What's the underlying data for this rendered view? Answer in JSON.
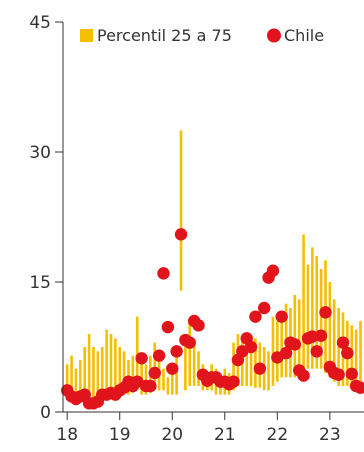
{
  "chart_data": {
    "type": "bar-range-scatter",
    "title": "",
    "xlabel": "",
    "ylabel": "",
    "ylim": [
      0,
      45
    ],
    "xlim": [
      18,
      23.65
    ],
    "y_ticks": [
      0,
      15,
      30,
      45
    ],
    "x_ticks": [
      18,
      19,
      20,
      21,
      22,
      23
    ],
    "x_tick_labels": [
      "18",
      "19",
      "20",
      "21",
      "22",
      "23"
    ],
    "grid": false,
    "legend": {
      "placement": "top",
      "entries": [
        "Percentil 25 a 75",
        "Chile"
      ]
    },
    "colors": {
      "band": "#F6BE00",
      "point": "#E1141B",
      "axis": "#333333"
    },
    "series": [
      {
        "name": "Percentil 25 a 75",
        "type": "range-bar",
        "x": [
          18.0,
          18.083,
          18.167,
          18.25,
          18.333,
          18.417,
          18.5,
          18.583,
          18.667,
          18.75,
          18.833,
          18.917,
          19.0,
          19.083,
          19.167,
          19.25,
          19.333,
          19.417,
          19.5,
          19.583,
          19.667,
          19.75,
          19.833,
          19.917,
          20.0,
          20.083,
          20.167,
          20.25,
          20.333,
          20.417,
          20.5,
          20.583,
          20.667,
          20.75,
          20.833,
          20.917,
          21.0,
          21.083,
          21.167,
          21.25,
          21.333,
          21.417,
          21.5,
          21.583,
          21.667,
          21.75,
          21.833,
          21.917,
          22.0,
          22.083,
          22.167,
          22.25,
          22.333,
          22.417,
          22.5,
          22.583,
          22.667,
          22.75,
          22.833,
          22.917,
          23.0,
          23.083,
          23.167,
          23.25,
          23.333,
          23.417,
          23.5,
          23.583
        ],
        "low": [
          2.0,
          2.5,
          2.2,
          2.0,
          1.8,
          1.5,
          1.5,
          1.8,
          2.0,
          2.2,
          2.5,
          2.5,
          2.2,
          2.0,
          2.0,
          2.2,
          2.5,
          2.0,
          2.0,
          2.2,
          2.5,
          2.5,
          2.5,
          2.0,
          2.0,
          2.0,
          14.0,
          2.5,
          3.0,
          3.0,
          3.0,
          2.5,
          2.5,
          2.5,
          2.0,
          2.0,
          2.0,
          2.0,
          2.5,
          3.0,
          3.0,
          3.0,
          3.0,
          2.8,
          2.8,
          2.5,
          2.5,
          3.0,
          3.5,
          4.0,
          4.0,
          4.0,
          4.0,
          4.0,
          4.5,
          5.0,
          5.0,
          5.0,
          5.0,
          4.5,
          4.0,
          3.5,
          3.0,
          3.0,
          3.0,
          3.0,
          3.0,
          3.0
        ],
        "high": [
          5.5,
          6.5,
          5.0,
          6.0,
          7.5,
          9.0,
          7.5,
          7.0,
          7.5,
          9.5,
          9.0,
          8.5,
          7.5,
          7.0,
          6.0,
          6.5,
          11.0,
          6.0,
          5.5,
          6.5,
          8.0,
          7.0,
          5.0,
          4.0,
          5.5,
          6.5,
          32.5,
          8.0,
          10.5,
          8.0,
          7.0,
          5.5,
          4.5,
          5.5,
          5.0,
          4.5,
          5.0,
          4.5,
          8.0,
          9.0,
          8.5,
          8.0,
          7.0,
          8.5,
          8.0,
          7.5,
          7.0,
          11.0,
          10.5,
          11.0,
          12.5,
          12.0,
          13.5,
          13.0,
          20.5,
          17.0,
          19.0,
          18.0,
          16.5,
          17.5,
          15.0,
          13.0,
          12.0,
          11.5,
          10.5,
          10.0,
          9.5,
          10.5
        ]
      },
      {
        "name": "Chile",
        "type": "scatter",
        "x": [
          18.0,
          18.083,
          18.167,
          18.25,
          18.333,
          18.417,
          18.5,
          18.583,
          18.667,
          18.75,
          18.833,
          18.917,
          19.0,
          19.083,
          19.167,
          19.25,
          19.333,
          19.417,
          19.5,
          19.583,
          19.667,
          19.75,
          19.833,
          19.917,
          20.0,
          20.083,
          20.167,
          20.25,
          20.333,
          20.417,
          20.5,
          20.583,
          20.667,
          20.75,
          20.833,
          20.917,
          21.0,
          21.083,
          21.167,
          21.25,
          21.333,
          21.417,
          21.5,
          21.583,
          21.667,
          21.75,
          21.833,
          21.917,
          22.0,
          22.083,
          22.167,
          22.25,
          22.333,
          22.417,
          22.5,
          22.583,
          22.667,
          22.75,
          22.833,
          22.917,
          23.0,
          23.083,
          23.167,
          23.25,
          23.333,
          23.417,
          23.5,
          23.583
        ],
        "y": [
          2.5,
          1.8,
          1.5,
          1.8,
          2.0,
          1.0,
          1.0,
          1.2,
          2.0,
          2.0,
          2.2,
          2.0,
          2.5,
          2.8,
          3.5,
          3.0,
          3.5,
          6.2,
          3.0,
          3.0,
          4.5,
          6.5,
          16.0,
          9.8,
          5.0,
          7.0,
          20.5,
          8.3,
          8.0,
          10.5,
          10.0,
          4.3,
          3.6,
          4.0,
          4.0,
          3.5,
          3.5,
          3.2,
          3.5,
          6.0,
          7.0,
          8.5,
          7.5,
          11.0,
          5.0,
          12.0,
          15.5,
          16.3,
          6.3,
          11.0,
          6.8,
          8.0,
          7.8,
          4.8,
          4.2,
          8.5,
          8.7,
          7.0,
          8.8,
          11.5,
          5.2,
          4.5,
          4.3,
          8.0,
          6.8,
          4.4,
          3.0,
          2.8
        ]
      }
    ]
  }
}
